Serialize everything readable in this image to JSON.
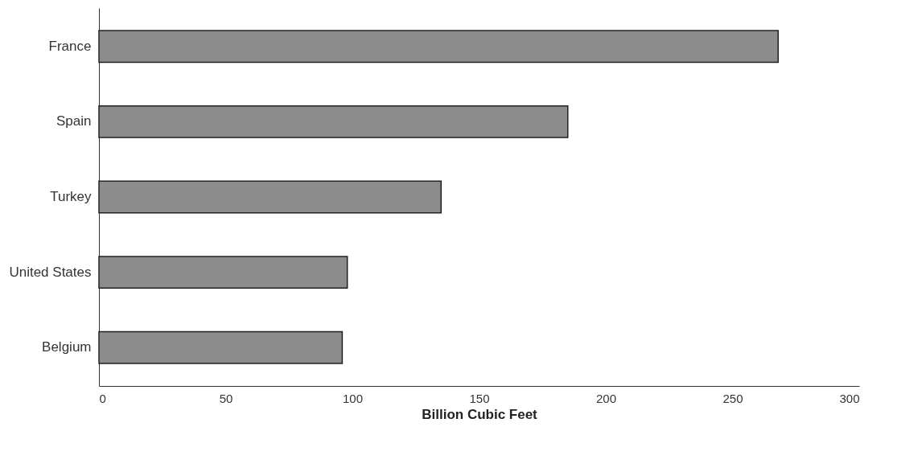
{
  "chart_data": {
    "type": "bar",
    "orientation": "horizontal",
    "xlabel": "Billion Cubic Feet",
    "categories": [
      "France",
      "Spain",
      "Turkey",
      "United States",
      "Belgium"
    ],
    "values": [
      268,
      185,
      135,
      98,
      96
    ],
    "color": "#8c8c8c",
    "xlim": [
      0,
      300
    ],
    "xticks": [
      0,
      50,
      100,
      150,
      200,
      250,
      300
    ],
    "grid": false
  }
}
